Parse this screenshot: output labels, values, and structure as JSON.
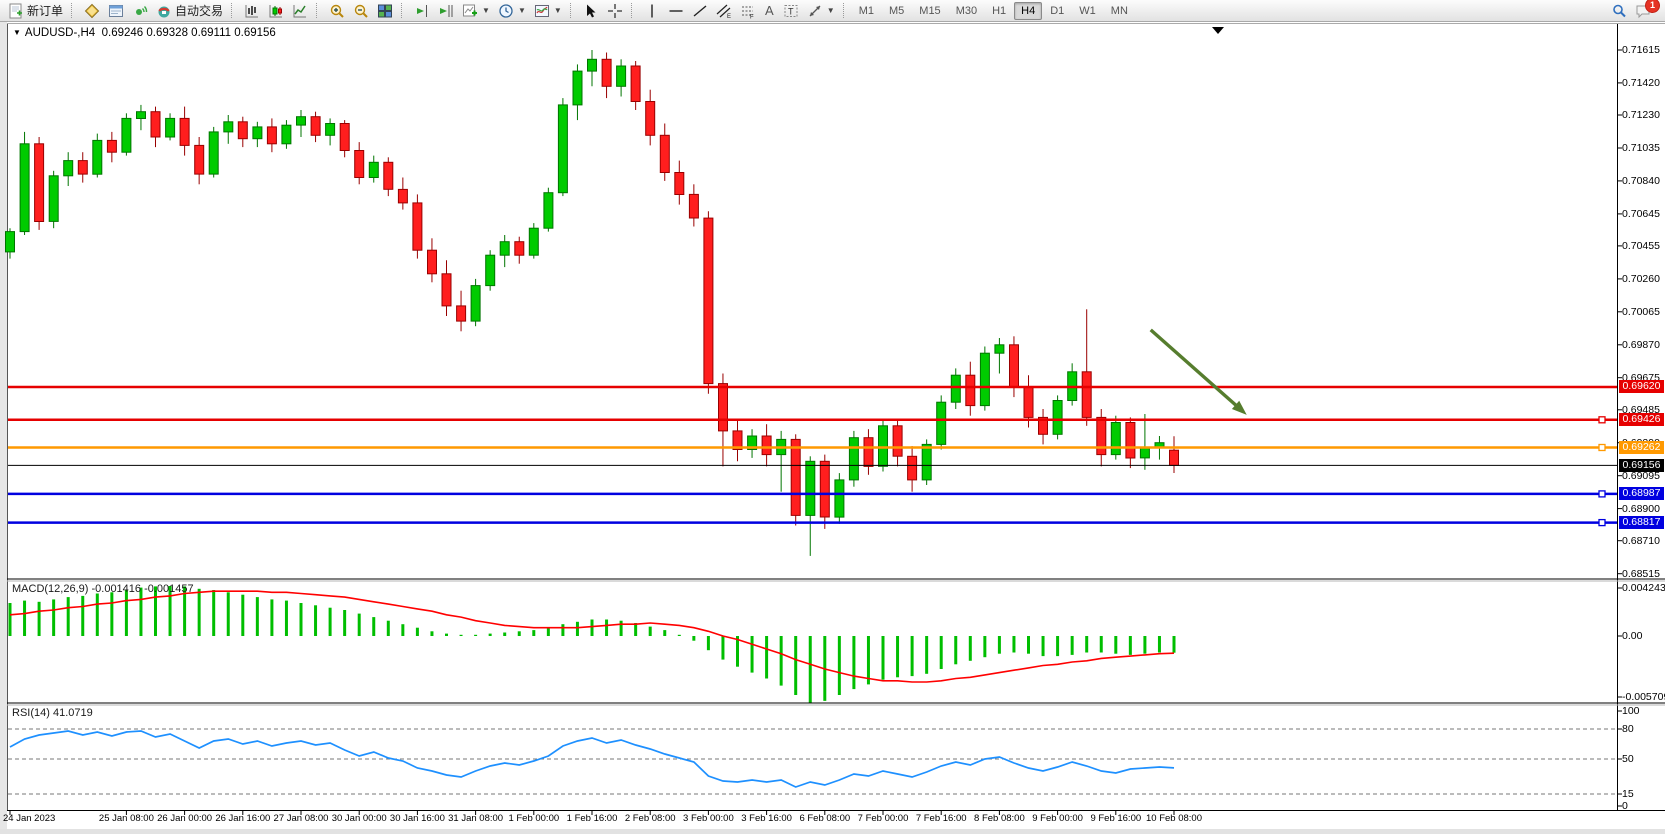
{
  "toolbar": {
    "new_order": "新订单",
    "autotrading": "自动交易",
    "timeframes": [
      "M1",
      "M5",
      "M15",
      "M30",
      "H1",
      "H4",
      "D1",
      "W1",
      "MN"
    ],
    "active_timeframe": "H4",
    "notification_count": "1"
  },
  "header": {
    "symbol": "AUDUSD-,H4",
    "open": "0.69246",
    "high": "0.69328",
    "low": "0.69111",
    "close": "0.69156"
  },
  "chart_data": {
    "type": "candlestick",
    "symbol": "AUDUSD-,H4",
    "price_ticks": [
      "0.71615",
      "0.71420",
      "0.71230",
      "0.71035",
      "0.70840",
      "0.70645",
      "0.70455",
      "0.70260",
      "0.70065",
      "0.69870",
      "0.69675",
      "0.69485",
      "0.69290",
      "0.69095",
      "0.68900",
      "0.68710",
      "0.68515"
    ],
    "time_labels": [
      {
        "t": "24 Jan 2023",
        "i": 0
      },
      {
        "t": "25 Jan 08:00",
        "i": 8
      },
      {
        "t": "26 Jan 00:00",
        "i": 12
      },
      {
        "t": "26 Jan 16:00",
        "i": 16
      },
      {
        "t": "27 Jan 08:00",
        "i": 20
      },
      {
        "t": "30 Jan 00:00",
        "i": 24
      },
      {
        "t": "30 Jan 16:00",
        "i": 28
      },
      {
        "t": "31 Jan 08:00",
        "i": 32
      },
      {
        "t": "1 Feb 00:00",
        "i": 36
      },
      {
        "t": "1 Feb 16:00",
        "i": 40
      },
      {
        "t": "2 Feb 08:00",
        "i": 44
      },
      {
        "t": "3 Feb 00:00",
        "i": 48
      },
      {
        "t": "3 Feb 16:00",
        "i": 52
      },
      {
        "t": "6 Feb 08:00",
        "i": 56
      },
      {
        "t": "7 Feb 00:00",
        "i": 60
      },
      {
        "t": "7 Feb 16:00",
        "i": 64
      },
      {
        "t": "8 Feb 08:00",
        "i": 68
      },
      {
        "t": "9 Feb 00:00",
        "i": 72
      },
      {
        "t": "9 Feb 16:00",
        "i": 76
      },
      {
        "t": "10 Feb 08:00",
        "i": 80
      }
    ],
    "candles": [
      [
        0.7042,
        0.7056,
        0.7038,
        0.7054
      ],
      [
        0.7054,
        0.7113,
        0.7052,
        0.7106
      ],
      [
        0.7106,
        0.711,
        0.7055,
        0.706
      ],
      [
        0.706,
        0.709,
        0.7056,
        0.7087
      ],
      [
        0.7087,
        0.7101,
        0.7081,
        0.7096
      ],
      [
        0.7096,
        0.7101,
        0.7083,
        0.7088
      ],
      [
        0.7088,
        0.7112,
        0.7086,
        0.7108
      ],
      [
        0.7108,
        0.7113,
        0.7095,
        0.7101
      ],
      [
        0.7101,
        0.7124,
        0.7099,
        0.7121
      ],
      [
        0.7121,
        0.7129,
        0.7114,
        0.7125
      ],
      [
        0.7125,
        0.7128,
        0.7104,
        0.711
      ],
      [
        0.711,
        0.7124,
        0.7108,
        0.7121
      ],
      [
        0.7121,
        0.7128,
        0.7099,
        0.7105
      ],
      [
        0.7105,
        0.711,
        0.7082,
        0.7088
      ],
      [
        0.7088,
        0.7116,
        0.7086,
        0.7113
      ],
      [
        0.7113,
        0.7123,
        0.7106,
        0.7119
      ],
      [
        0.7119,
        0.7122,
        0.7104,
        0.7109
      ],
      [
        0.7109,
        0.7119,
        0.7104,
        0.7116
      ],
      [
        0.7116,
        0.7121,
        0.7101,
        0.7106
      ],
      [
        0.7106,
        0.712,
        0.7103,
        0.7117
      ],
      [
        0.7117,
        0.7126,
        0.711,
        0.7122
      ],
      [
        0.7122,
        0.7125,
        0.7107,
        0.7111
      ],
      [
        0.7111,
        0.7121,
        0.7105,
        0.7118
      ],
      [
        0.7118,
        0.712,
        0.7098,
        0.7102
      ],
      [
        0.7102,
        0.7107,
        0.7082,
        0.7086
      ],
      [
        0.7086,
        0.7099,
        0.7083,
        0.7095
      ],
      [
        0.7095,
        0.7098,
        0.7075,
        0.7079
      ],
      [
        0.7079,
        0.7086,
        0.7067,
        0.7071
      ],
      [
        0.7071,
        0.7076,
        0.7038,
        0.7043
      ],
      [
        0.7043,
        0.705,
        0.7024,
        0.7029
      ],
      [
        0.7029,
        0.7037,
        0.7004,
        0.701
      ],
      [
        0.701,
        0.7019,
        0.6995,
        0.7001
      ],
      [
        0.7001,
        0.7026,
        0.6998,
        0.7022
      ],
      [
        0.7022,
        0.7043,
        0.7019,
        0.704
      ],
      [
        0.704,
        0.7052,
        0.7033,
        0.7048
      ],
      [
        0.7048,
        0.7051,
        0.7035,
        0.704
      ],
      [
        0.704,
        0.7059,
        0.7038,
        0.7056
      ],
      [
        0.7056,
        0.708,
        0.7054,
        0.7077
      ],
      [
        0.7077,
        0.7133,
        0.7075,
        0.7129
      ],
      [
        0.7129,
        0.7153,
        0.712,
        0.7149
      ],
      [
        0.7149,
        0.71615,
        0.714,
        0.7156
      ],
      [
        0.7156,
        0.716,
        0.7133,
        0.714
      ],
      [
        0.714,
        0.7156,
        0.7134,
        0.7152
      ],
      [
        0.7152,
        0.7155,
        0.7126,
        0.7131
      ],
      [
        0.7131,
        0.7138,
        0.7105,
        0.7111
      ],
      [
        0.7111,
        0.7118,
        0.7084,
        0.7089
      ],
      [
        0.7089,
        0.7096,
        0.707,
        0.7076
      ],
      [
        0.7076,
        0.7082,
        0.7057,
        0.7062
      ],
      [
        0.7062,
        0.7066,
        0.6958,
        0.6964
      ],
      [
        0.6964,
        0.697,
        0.6915,
        0.6936
      ],
      [
        0.6936,
        0.6942,
        0.6918,
        0.6925
      ],
      [
        0.6925,
        0.6937,
        0.692,
        0.6933
      ],
      [
        0.6933,
        0.694,
        0.6915,
        0.6922
      ],
      [
        0.6922,
        0.6936,
        0.69,
        0.6931
      ],
      [
        0.6931,
        0.6934,
        0.688,
        0.6886
      ],
      [
        0.6886,
        0.6921,
        0.6862,
        0.6918
      ],
      [
        0.6918,
        0.6922,
        0.6878,
        0.6885
      ],
      [
        0.6885,
        0.6911,
        0.6881,
        0.6907
      ],
      [
        0.6907,
        0.6936,
        0.6903,
        0.6932
      ],
      [
        0.6932,
        0.6937,
        0.691,
        0.6915
      ],
      [
        0.6915,
        0.6942,
        0.6912,
        0.6939
      ],
      [
        0.6939,
        0.6943,
        0.6915,
        0.6921
      ],
      [
        0.6921,
        0.6927,
        0.69,
        0.6907
      ],
      [
        0.6907,
        0.6931,
        0.6904,
        0.6928
      ],
      [
        0.6928,
        0.6957,
        0.6925,
        0.6953
      ],
      [
        0.6953,
        0.6973,
        0.6949,
        0.6969
      ],
      [
        0.6969,
        0.6977,
        0.6945,
        0.6951
      ],
      [
        0.6951,
        0.6986,
        0.6948,
        0.6982
      ],
      [
        0.6982,
        0.6991,
        0.697,
        0.6987
      ],
      [
        0.6987,
        0.6992,
        0.6956,
        0.6962
      ],
      [
        0.6962,
        0.6969,
        0.6938,
        0.6944
      ],
      [
        0.6944,
        0.6949,
        0.6928,
        0.6934
      ],
      [
        0.6934,
        0.6957,
        0.6931,
        0.6954
      ],
      [
        0.6954,
        0.6976,
        0.6951,
        0.6971
      ],
      [
        0.6971,
        0.7008,
        0.6939,
        0.6944
      ],
      [
        0.6944,
        0.6949,
        0.6915,
        0.6922
      ],
      [
        0.6922,
        0.6945,
        0.6919,
        0.6941
      ],
      [
        0.6941,
        0.6944,
        0.6914,
        0.692
      ],
      [
        0.692,
        0.6946,
        0.6913,
        0.6926
      ],
      [
        0.6926,
        0.6933,
        0.6919,
        0.6929
      ],
      [
        0.69246,
        0.69328,
        0.69111,
        0.69156
      ]
    ],
    "hlines": [
      {
        "price": 0.6962,
        "label": "0.69620",
        "color": "#e60000",
        "width": 2.5,
        "handle": false
      },
      {
        "price": 0.69426,
        "label": "0.69426",
        "color": "#e60000",
        "width": 2.5,
        "handle": true
      },
      {
        "price": 0.69262,
        "label": "0.69262",
        "color": "#ff9900",
        "width": 2.5,
        "handle": true
      },
      {
        "price": 0.69156,
        "label": "0.69156",
        "color": "#000000",
        "width": 1,
        "handle": false
      },
      {
        "price": 0.68987,
        "label": "0.68987",
        "color": "#0000e0",
        "width": 2.5,
        "handle": true
      },
      {
        "price": 0.68817,
        "label": "0.68817",
        "color": "#0000e0",
        "width": 2.5,
        "handle": true
      }
    ],
    "arrow": {
      "from": {
        "i": 78.4,
        "price": 0.69958
      },
      "to": {
        "i": 85,
        "price": 0.69455
      },
      "color": "#567d2e"
    },
    "macd": {
      "label": "MACD(12,26,9)",
      "values_text": "-0.001416 -0.001457",
      "ticks": [
        {
          "v": 0.004243,
          "text": "0.004243"
        },
        {
          "v": 0,
          "text": "0.00"
        },
        {
          "v": -0.005709,
          "text": "-0.005709"
        }
      ],
      "hist": [
        0.0028,
        0.003,
        0.0029,
        0.0031,
        0.0033,
        0.0034,
        0.0036,
        0.0037,
        0.0039,
        0.0041,
        0.0042,
        0.00424,
        0.0042,
        0.004,
        0.0039,
        0.0037,
        0.0035,
        0.0033,
        0.0031,
        0.003,
        0.0028,
        0.0026,
        0.0024,
        0.0022,
        0.0019,
        0.0016,
        0.0013,
        0.001,
        0.0007,
        0.0004,
        0.0002,
        0.0001,
        0.0001,
        0.0002,
        0.0003,
        0.0004,
        0.0005,
        0.0007,
        0.001,
        0.0012,
        0.0014,
        0.0014,
        0.0013,
        0.0011,
        0.0008,
        0.0005,
        0.0001,
        -0.0004,
        -0.0012,
        -0.002,
        -0.0026,
        -0.0031,
        -0.0036,
        -0.0042,
        -0.005,
        -0.0057,
        -0.0055,
        -0.005,
        -0.0045,
        -0.0041,
        -0.0037,
        -0.0035,
        -0.0034,
        -0.0032,
        -0.0028,
        -0.0024,
        -0.0021,
        -0.0018,
        -0.0015,
        -0.0014,
        -0.0015,
        -0.0017,
        -0.0017,
        -0.0016,
        -0.0014,
        -0.0014,
        -0.0015,
        -0.0016,
        -0.0015,
        -0.0014,
        -0.001416
      ],
      "signal": [
        0.0018,
        0.0019,
        0.0021,
        0.0022,
        0.0024,
        0.0025,
        0.0027,
        0.0028,
        0.003,
        0.0031,
        0.0033,
        0.0034,
        0.0036,
        0.0037,
        0.0038,
        0.0038,
        0.0038,
        0.0038,
        0.0037,
        0.0037,
        0.0036,
        0.0035,
        0.0034,
        0.0033,
        0.0031,
        0.0029,
        0.0027,
        0.0025,
        0.0023,
        0.0021,
        0.0018,
        0.0016,
        0.0013,
        0.0011,
        0.0009,
        0.0008,
        0.0007,
        0.0007,
        0.0007,
        0.0007,
        0.0008,
        0.0009,
        0.001,
        0.001,
        0.0011,
        0.001,
        0.0009,
        0.0007,
        0.0004,
        0.0,
        -0.0003,
        -0.0007,
        -0.0011,
        -0.0015,
        -0.002,
        -0.0024,
        -0.0028,
        -0.0031,
        -0.0034,
        -0.0036,
        -0.0038,
        -0.0038,
        -0.0039,
        -0.0039,
        -0.0038,
        -0.0036,
        -0.0035,
        -0.0033,
        -0.0031,
        -0.0029,
        -0.0027,
        -0.0025,
        -0.0024,
        -0.0022,
        -0.0021,
        -0.0019,
        -0.0018,
        -0.0017,
        -0.0016,
        -0.0015,
        -0.001457
      ]
    },
    "rsi": {
      "label": "RSI(14)",
      "value_text": "41.0719",
      "levels": [
        80,
        50,
        15
      ],
      "ticks": [
        {
          "v": 100,
          "text": "100"
        },
        {
          "v": 80,
          "text": "80"
        },
        {
          "v": 50,
          "text": "50"
        },
        {
          "v": 15,
          "text": "15"
        },
        {
          "v": 0,
          "text": "0"
        }
      ],
      "values": [
        62,
        70,
        74,
        76,
        78,
        74,
        77,
        73,
        77,
        78,
        72,
        75,
        68,
        61,
        68,
        70,
        65,
        68,
        63,
        66,
        68,
        64,
        66,
        59,
        53,
        57,
        51,
        48,
        41,
        38,
        34,
        32,
        38,
        43,
        46,
        44,
        48,
        53,
        63,
        68,
        71,
        66,
        69,
        64,
        60,
        55,
        51,
        47,
        33,
        28,
        27,
        29,
        27,
        29,
        22,
        27,
        24,
        29,
        35,
        33,
        38,
        35,
        32,
        37,
        43,
        47,
        44,
        50,
        52,
        46,
        41,
        38,
        42,
        47,
        43,
        38,
        36,
        40,
        41,
        42,
        41.07
      ],
      "line_color": "#1e90ff"
    },
    "colors": {
      "bull_fill": "#00cb00",
      "bull_stroke": "#007500",
      "bear_fill": "#ff1e1e",
      "bear_stroke": "#990000",
      "macd_hist": "#00be00",
      "macd_signal": "#ff0000"
    }
  }
}
